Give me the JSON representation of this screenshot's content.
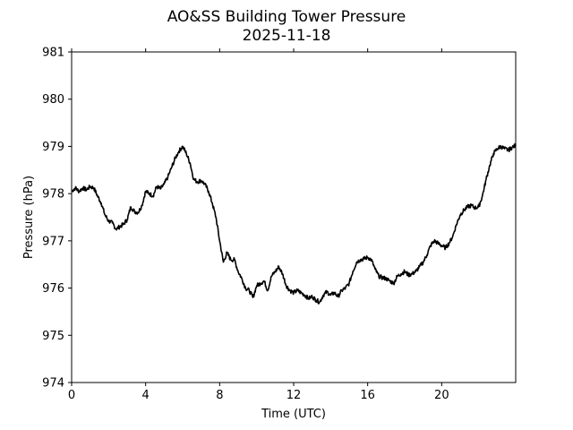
{
  "chart_data": {
    "type": "line",
    "title": "AO&SS Building Tower Pressure",
    "subtitle": "2025-11-18",
    "xlabel": "Time (UTC)",
    "ylabel": "Pressure (hPa)",
    "xlim": [
      0,
      24
    ],
    "ylim": [
      974,
      981
    ],
    "xticks": [
      0,
      4,
      8,
      12,
      16,
      20
    ],
    "xtick_labels": [
      "0",
      "4",
      "8",
      "12",
      "16",
      "20"
    ],
    "yticks": [
      974,
      975,
      976,
      977,
      978,
      979,
      980,
      981
    ],
    "ytick_labels": [
      "974",
      "975",
      "976",
      "977",
      "978",
      "979",
      "980",
      "981"
    ],
    "grid": false,
    "line_color": "#000000",
    "series": [
      {
        "x": [
          0,
          0.2,
          0.4,
          0.6,
          0.8,
          1.0,
          1.2,
          1.4,
          1.6,
          1.8,
          2.0,
          2.2,
          2.4,
          2.6,
          2.8,
          3.0,
          3.2,
          3.4,
          3.6,
          3.8,
          4.0,
          4.2,
          4.4,
          4.6,
          4.8,
          5.0,
          5.2,
          5.4,
          5.6,
          5.8,
          6.0,
          6.2,
          6.4,
          6.6,
          6.8,
          7.0,
          7.2,
          7.4,
          7.6,
          7.8,
          8.0,
          8.2,
          8.4,
          8.6,
          8.8,
          9.0,
          9.2,
          9.4,
          9.6,
          9.8,
          10.0,
          10.2,
          10.4,
          10.6,
          10.8,
          11.0,
          11.2,
          11.4,
          11.6,
          11.8,
          12.0,
          12.2,
          12.4,
          12.6,
          12.8,
          13.0,
          13.2,
          13.4,
          13.6,
          13.8,
          14.0,
          14.2,
          14.4,
          14.6,
          14.8,
          15.0,
          15.2,
          15.4,
          15.6,
          15.8,
          16.0,
          16.2,
          16.4,
          16.6,
          16.8,
          17.0,
          17.2,
          17.4,
          17.6,
          17.8,
          18.0,
          18.2,
          18.4,
          18.6,
          18.8,
          19.0,
          19.2,
          19.4,
          19.6,
          19.8,
          20.0,
          20.2,
          20.4,
          20.6,
          20.8,
          21.0,
          21.2,
          21.4,
          21.6,
          21.8,
          22.0,
          22.2,
          22.4,
          22.6,
          22.8,
          23.0,
          23.2,
          23.4,
          23.6,
          23.8,
          24.0
        ],
        "values": [
          978.05,
          978.12,
          978.05,
          978.12,
          978.08,
          978.15,
          978.12,
          977.95,
          977.8,
          977.55,
          977.42,
          977.38,
          977.25,
          977.3,
          977.35,
          977.45,
          977.72,
          977.62,
          977.6,
          977.75,
          978.05,
          978.0,
          977.95,
          978.15,
          978.1,
          978.2,
          978.35,
          978.55,
          978.75,
          978.9,
          979.0,
          978.85,
          978.65,
          978.3,
          978.25,
          978.28,
          978.2,
          978.05,
          977.8,
          977.5,
          977.0,
          976.55,
          976.75,
          976.6,
          976.6,
          976.35,
          976.2,
          976.0,
          975.95,
          975.8,
          976.05,
          976.1,
          976.15,
          975.95,
          976.25,
          976.35,
          976.45,
          976.3,
          976.05,
          975.95,
          975.9,
          975.95,
          975.9,
          975.85,
          975.78,
          975.82,
          975.75,
          975.7,
          975.85,
          975.92,
          975.85,
          975.9,
          975.82,
          975.95,
          976.0,
          976.1,
          976.35,
          976.55,
          976.6,
          976.62,
          976.65,
          976.6,
          976.4,
          976.25,
          976.22,
          976.2,
          976.15,
          976.1,
          976.25,
          976.3,
          976.35,
          976.28,
          976.3,
          976.35,
          976.45,
          976.55,
          976.7,
          976.9,
          977.0,
          976.95,
          976.9,
          976.85,
          976.95,
          977.1,
          977.35,
          977.55,
          977.65,
          977.72,
          977.75,
          977.7,
          977.72,
          977.95,
          978.3,
          978.6,
          978.85,
          978.95,
          979.0,
          978.95,
          978.92,
          978.98,
          979.02
        ]
      }
    ]
  }
}
